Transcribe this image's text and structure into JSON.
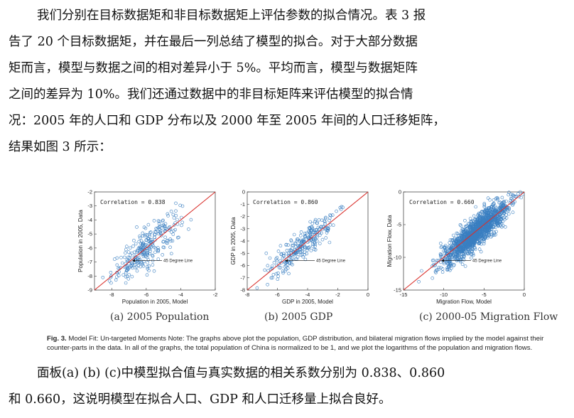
{
  "paragraph1": [
    "我们分别在目标数据矩和非目标数据矩上评估参数的拟合情况。表 3 报",
    "告了 20 个目标数据矩，并在最后一列总结了模型的拟合。对于大部分数据",
    "矩而言，模型与数据之间的相对差异小于 5%。平均而言，模型与数据矩阵",
    "之间的差异为 10%。我们还通过数据中的非目标矩阵来评估模型的拟合情",
    "况：2005 年的人口和 GDP 分布以及 2000 年至 2005 年间的人口迁移矩阵，",
    "结果如图 3 所示："
  ],
  "paragraph2": [
    "面板(a) (b) (c)中模型拟合值与真实数据的相关系数分别为 0.838、0.860",
    "和 0.660，这说明模型在拟合人口、GDP 和人口迁移量上拟合良好。"
  ],
  "figure_caption": {
    "label": "Fig. 3.",
    "text": "Model Fit: Un-targeted Moments Note: The graphs above plot the population, GDP distribution, and bilateral migration flows implied by the model against their counter-parts in the data. In all of the graphs, the total population of China is normalized to be 1, and we plot the logarithms of the population and migration flows."
  },
  "chart_data": [
    {
      "type": "scatter",
      "subcaption": "(a) 2005 Population",
      "xlabel": "Population in 2005, Model",
      "ylabel": "Population in 2005, Data",
      "xlim": [
        -9,
        -2
      ],
      "ylim": [
        -9,
        -2
      ],
      "xticks": [
        "-8",
        "-6",
        "-4",
        "-2"
      ],
      "yticks": [
        "-2",
        "-3",
        "-4",
        "-5",
        "-6",
        "-7",
        "-8",
        "-9"
      ],
      "correlation_text": "Correlation = 0.838",
      "annotation": "45 Degree Line",
      "point_color": "#3a7fc1",
      "line_color": "#d9302c",
      "n_points": 280,
      "center": [
        -6,
        -6
      ],
      "spread": [
        1.0,
        0.95
      ],
      "noise": 0.55
    },
    {
      "type": "scatter",
      "subcaption": "(b) 2005 GDP",
      "xlabel": "GDP in 2005, Model",
      "ylabel": "GDP in 2005, Data",
      "xlim": [
        -8,
        0
      ],
      "ylim": [
        -8,
        0
      ],
      "xticks": [
        "-8",
        "-6",
        "-4",
        "-2",
        "0"
      ],
      "yticks": [
        "0",
        "-1",
        "-2",
        "-3",
        "-4",
        "-5",
        "-6",
        "-7",
        "-8"
      ],
      "correlation_text": "Correlation = 0.860",
      "annotation": "45 Degree Line",
      "point_color": "#3a7fc1",
      "line_color": "#d9302c",
      "n_points": 260,
      "center": [
        -4.3,
        -4.3
      ],
      "spread": [
        1.1,
        1.0
      ],
      "noise": 0.5
    },
    {
      "type": "scatter",
      "subcaption": "(c) 2000-05 Migration Flow",
      "xlabel": "Migration Flow, Model",
      "ylabel": "Migration Flow, Data",
      "xlim": [
        -15,
        0
      ],
      "ylim": [
        -15,
        0
      ],
      "xticks": [
        "-15",
        "-10",
        "-5",
        "0"
      ],
      "yticks": [
        "0",
        "-5",
        "-10",
        "-15"
      ],
      "correlation_text": "Correlation = 0.660",
      "annotation": "45 Degree Line",
      "point_color": "#3a7fc1",
      "line_color": "#d9302c",
      "n_points": 1500,
      "center": [
        -6,
        -6.2
      ],
      "spread": [
        2.0,
        1.2
      ],
      "noise": 1.3
    }
  ]
}
